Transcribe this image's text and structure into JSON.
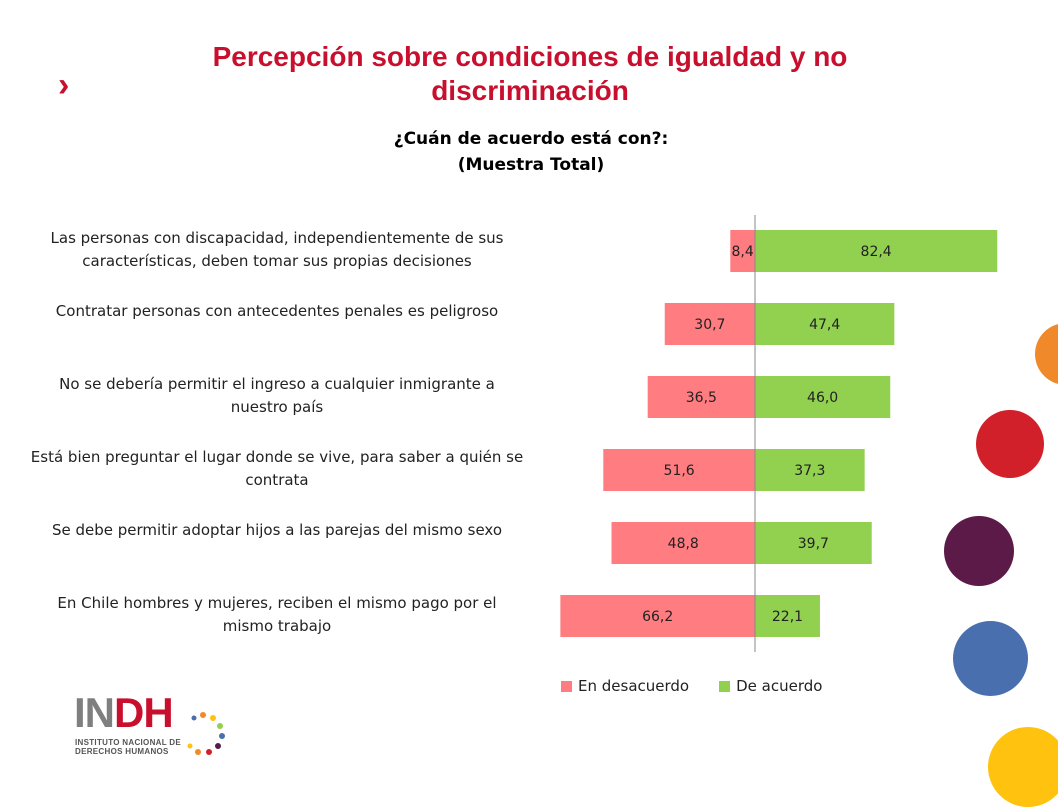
{
  "header": {
    "chevron": "›",
    "title": "Percepción sobre condiciones de igualdad y no discriminación"
  },
  "colors": {
    "title_red": "#c8102e",
    "disagree": "#ff7c80",
    "agree": "#92d050",
    "axis_line": "#888888",
    "circle_orange": "#f0892a",
    "circle_red": "#d2202a",
    "circle_purple": "#5b1a48",
    "circle_blue": "#4a6fae",
    "circle_yellow": "#ffc20e"
  },
  "chart_data": {
    "type": "bar",
    "orientation": "horizontal-diverging",
    "title_line1": "¿Cuán de acuerdo está con?:",
    "title_line2": "(Muestra Total)",
    "categories": [
      "Las personas con discapacidad, independientemente de sus características, deben tomar sus propias decisiones",
      "Contratar personas con antecedentes penales es peligroso",
      "No se debería permitir el ingreso a cualquier inmigrante a nuestro país",
      "Está bien preguntar el lugar donde se vive, para saber a quién se contrata",
      "Se debe permitir adoptar hijos a las parejas del mismo sexo",
      "En Chile hombres y mujeres, reciben el mismo pago por el mismo trabajo"
    ],
    "series": [
      {
        "name": "En desacuerdo",
        "values": [
          8.4,
          30.7,
          36.5,
          51.6,
          48.8,
          66.2
        ],
        "labels": [
          "8,4",
          "30,7",
          "36,5",
          "51,6",
          "48,8",
          "66,2"
        ]
      },
      {
        "name": "De acuerdo",
        "values": [
          82.4,
          47.4,
          46.0,
          37.3,
          39.7,
          22.1
        ],
        "labels": [
          "82,4",
          "47,4",
          "46,0",
          "37,3",
          "39,7",
          "22,1"
        ]
      }
    ],
    "legend_position": "bottom",
    "grid": false
  },
  "logo": {
    "name": "INDH",
    "subtitle_line1": "INSTITUTO NACIONAL DE",
    "subtitle_line2": "DERECHOS HUMANOS"
  }
}
